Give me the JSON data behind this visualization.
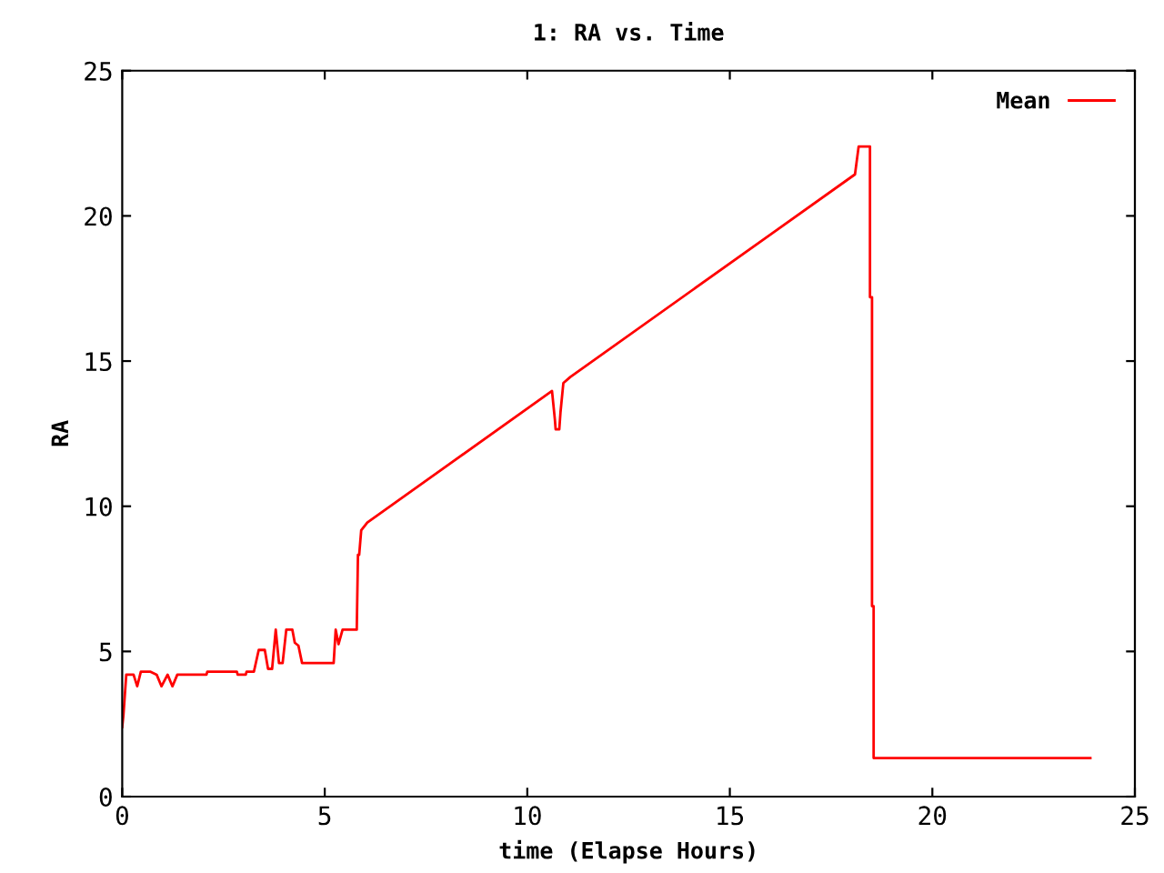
{
  "chart_data": {
    "type": "line",
    "title": "1: RA vs. Time",
    "xlabel": "time (Elapse Hours)",
    "ylabel": "RA",
    "series": [
      {
        "name": "Mean",
        "color": "#ff0000",
        "x": [
          0,
          0.03,
          0.1,
          0.28,
          0.37,
          0.46,
          0.7,
          0.85,
          0.97,
          1.12,
          1.24,
          1.36,
          2.08,
          2.1,
          2.83,
          2.85,
          3.05,
          3.07,
          3.25,
          3.37,
          3.52,
          3.6,
          3.7,
          3.79,
          3.87,
          3.96,
          4.05,
          4.2,
          4.26,
          4.35,
          4.44,
          5.22,
          5.27,
          5.34,
          5.44,
          5.79,
          5.82,
          5.85,
          5.9,
          6.05,
          10.61,
          10.68,
          10.7,
          10.79,
          10.82,
          10.89,
          11.06,
          18.09,
          18.18,
          18.46,
          18.46,
          18.51,
          18.51,
          18.55,
          18.55,
          23.9
        ],
        "values": [
          2.4,
          2.8,
          4.2,
          4.2,
          3.8,
          4.3,
          4.3,
          4.2,
          3.8,
          4.2,
          3.8,
          4.2,
          4.2,
          4.3,
          4.3,
          4.2,
          4.2,
          4.3,
          4.3,
          5.05,
          5.05,
          4.4,
          4.4,
          5.75,
          4.6,
          4.6,
          5.75,
          5.75,
          5.3,
          5.2,
          4.6,
          4.6,
          5.75,
          5.25,
          5.75,
          5.75,
          8.33,
          8.33,
          9.17,
          9.44,
          13.97,
          13.0,
          12.65,
          12.65,
          13.24,
          14.24,
          14.45,
          21.43,
          22.39,
          22.39,
          17.2,
          17.2,
          6.56,
          6.56,
          1.33,
          1.33
        ]
      }
    ],
    "xlim": [
      0,
      25
    ],
    "ylim": [
      0,
      25
    ],
    "xticks": [
      0,
      5,
      10,
      15,
      20,
      25
    ],
    "yticks": [
      0,
      5,
      10,
      15,
      20,
      25
    ],
    "grid": false,
    "legend": "top right",
    "marker": "none",
    "line_style": "solid"
  }
}
